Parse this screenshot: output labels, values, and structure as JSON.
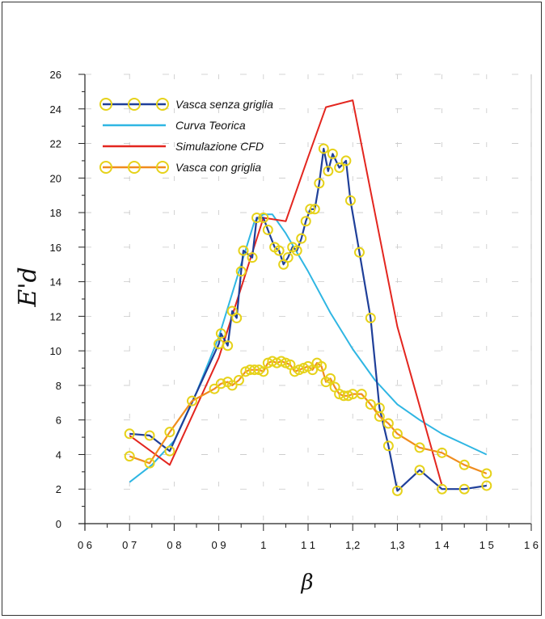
{
  "chart_data": {
    "type": "line",
    "title": "",
    "xlabel": "β",
    "ylabel": "E'd",
    "xlim": [
      0.6,
      1.6
    ],
    "ylim": [
      0,
      26
    ],
    "x_ticks": [
      0.6,
      0.7,
      0.8,
      0.9,
      1.0,
      1.1,
      1.2,
      1.3,
      1.4,
      1.5,
      1.6
    ],
    "x_tick_labels": [
      "0 6",
      "0 7",
      "0 8",
      "0 9",
      "1",
      "1 1",
      "1,2",
      "1,3",
      "1 4",
      "1 5",
      "1 6"
    ],
    "y_ticks": [
      0,
      2,
      4,
      6,
      8,
      10,
      12,
      14,
      16,
      18,
      20,
      22,
      24,
      26
    ],
    "y_tick_labels": [
      "0",
      "2",
      "4",
      "6",
      "8",
      "10",
      "12",
      "14",
      "16",
      "18",
      "20",
      "22",
      "24",
      "26"
    ],
    "grid": true,
    "legend_position": "top-left",
    "series": [
      {
        "name": "Vasca senza griglia",
        "color": "#1f3f99",
        "marker": "circle",
        "x": [
          0.7,
          0.745,
          0.79,
          0.9,
          0.905,
          0.92,
          0.93,
          0.94,
          0.95,
          0.955,
          0.975,
          0.985,
          1.0,
          1.01,
          1.025,
          1.035,
          1.045,
          1.055,
          1.065,
          1.075,
          1.085,
          1.095,
          1.105,
          1.115,
          1.125,
          1.135,
          1.145,
          1.155,
          1.17,
          1.185,
          1.195,
          1.215,
          1.24,
          1.26,
          1.28,
          1.3,
          1.35,
          1.4,
          1.45,
          1.5
        ],
        "y": [
          5.2,
          5.1,
          4.2,
          10.4,
          11.0,
          10.3,
          12.3,
          11.9,
          14.6,
          15.8,
          15.4,
          17.7,
          17.7,
          17.0,
          16.0,
          15.8,
          15.0,
          15.4,
          16.0,
          15.8,
          16.5,
          17.5,
          18.2,
          18.2,
          19.7,
          21.7,
          20.4,
          21.4,
          20.6,
          21.0,
          18.7,
          15.7,
          11.9,
          6.7,
          4.5,
          1.9,
          3.1,
          2.0,
          2.0,
          2.2
        ]
      },
      {
        "name": "Curva Teorica",
        "color": "#2fb6e3",
        "marker": "none",
        "x": [
          0.7,
          0.75,
          0.8,
          0.85,
          0.9,
          0.95,
          0.98,
          1.0,
          1.02,
          1.05,
          1.1,
          1.15,
          1.2,
          1.25,
          1.3,
          1.35,
          1.4,
          1.45,
          1.5
        ],
        "y": [
          2.4,
          3.4,
          4.8,
          7.6,
          10.8,
          15.0,
          17.5,
          17.9,
          17.9,
          16.8,
          14.6,
          12.2,
          10.1,
          8.3,
          6.9,
          6.0,
          5.2,
          4.6,
          4.0
        ]
      },
      {
        "name": "Simulazione CFD",
        "color": "#e3261f",
        "marker": "none",
        "x": [
          0.7,
          0.79,
          0.9,
          1.0,
          1.05,
          1.1,
          1.14,
          1.2,
          1.3,
          1.4
        ],
        "y": [
          5.1,
          3.4,
          9.6,
          17.7,
          17.5,
          21.2,
          24.1,
          24.5,
          11.4,
          2.2
        ]
      },
      {
        "name": "Vasca con griglia",
        "color": "#f08c1e",
        "marker": "circle",
        "x": [
          0.7,
          0.745,
          0.79,
          0.84,
          0.89,
          0.905,
          0.92,
          0.93,
          0.945,
          0.96,
          0.97,
          0.98,
          0.99,
          1.0,
          1.01,
          1.02,
          1.03,
          1.04,
          1.05,
          1.06,
          1.07,
          1.08,
          1.09,
          1.1,
          1.11,
          1.12,
          1.13,
          1.14,
          1.15,
          1.16,
          1.17,
          1.18,
          1.19,
          1.2,
          1.22,
          1.24,
          1.26,
          1.28,
          1.3,
          1.35,
          1.4,
          1.45,
          1.5
        ],
        "y": [
          3.9,
          3.5,
          5.3,
          7.1,
          7.8,
          8.1,
          8.2,
          8.0,
          8.3,
          8.8,
          8.9,
          8.9,
          8.9,
          8.8,
          9.3,
          9.4,
          9.3,
          9.4,
          9.3,
          9.2,
          8.8,
          8.9,
          9.0,
          9.1,
          8.9,
          9.3,
          9.1,
          8.2,
          8.4,
          7.9,
          7.5,
          7.4,
          7.4,
          7.5,
          7.5,
          6.9,
          6.2,
          5.8,
          5.2,
          4.4,
          4.1,
          3.4,
          2.9
        ]
      }
    ]
  }
}
